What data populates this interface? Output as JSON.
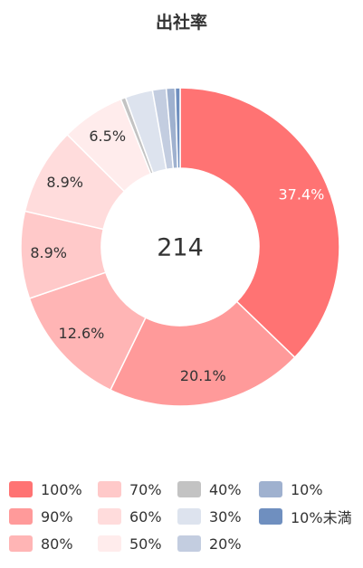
{
  "chart_data": {
    "type": "pie",
    "title": "出社率",
    "center_label": "214",
    "slices": [
      {
        "name": "100%",
        "value": 37.4,
        "label": "37.4%",
        "color": "#ff7373"
      },
      {
        "name": "90%",
        "value": 20.1,
        "label": "20.1%",
        "color": "#ff9a9a"
      },
      {
        "name": "80%",
        "value": 12.6,
        "label": "12.6%",
        "color": "#ffb5b5"
      },
      {
        "name": "70%",
        "value": 8.9,
        "label": "8.9%",
        "color": "#ffc9c9"
      },
      {
        "name": "60%",
        "value": 8.9,
        "label": "8.9%",
        "color": "#ffdcdc"
      },
      {
        "name": "50%",
        "value": 6.5,
        "label": "6.5%",
        "color": "#ffecec"
      },
      {
        "name": "40%",
        "value": 0.5,
        "label": "",
        "color": "#c3c3c3"
      },
      {
        "name": "30%",
        "value": 2.8,
        "label": "",
        "color": "#dde3ee"
      },
      {
        "name": "20%",
        "value": 1.4,
        "label": "",
        "color": "#c3cde0"
      },
      {
        "name": "10%",
        "value": 0.9,
        "label": "",
        "color": "#9fb1cf"
      },
      {
        "name": "10%未満",
        "value": 0.5,
        "label": "",
        "color": "#6f8fbf"
      }
    ],
    "legend": {
      "placement": "bottom",
      "columns": [
        [
          "100%",
          "90%",
          "80%"
        ],
        [
          "70%",
          "60%",
          "50%"
        ],
        [
          "40%",
          "30%",
          "20%"
        ],
        [
          "10%",
          "10%未満"
        ]
      ]
    }
  }
}
